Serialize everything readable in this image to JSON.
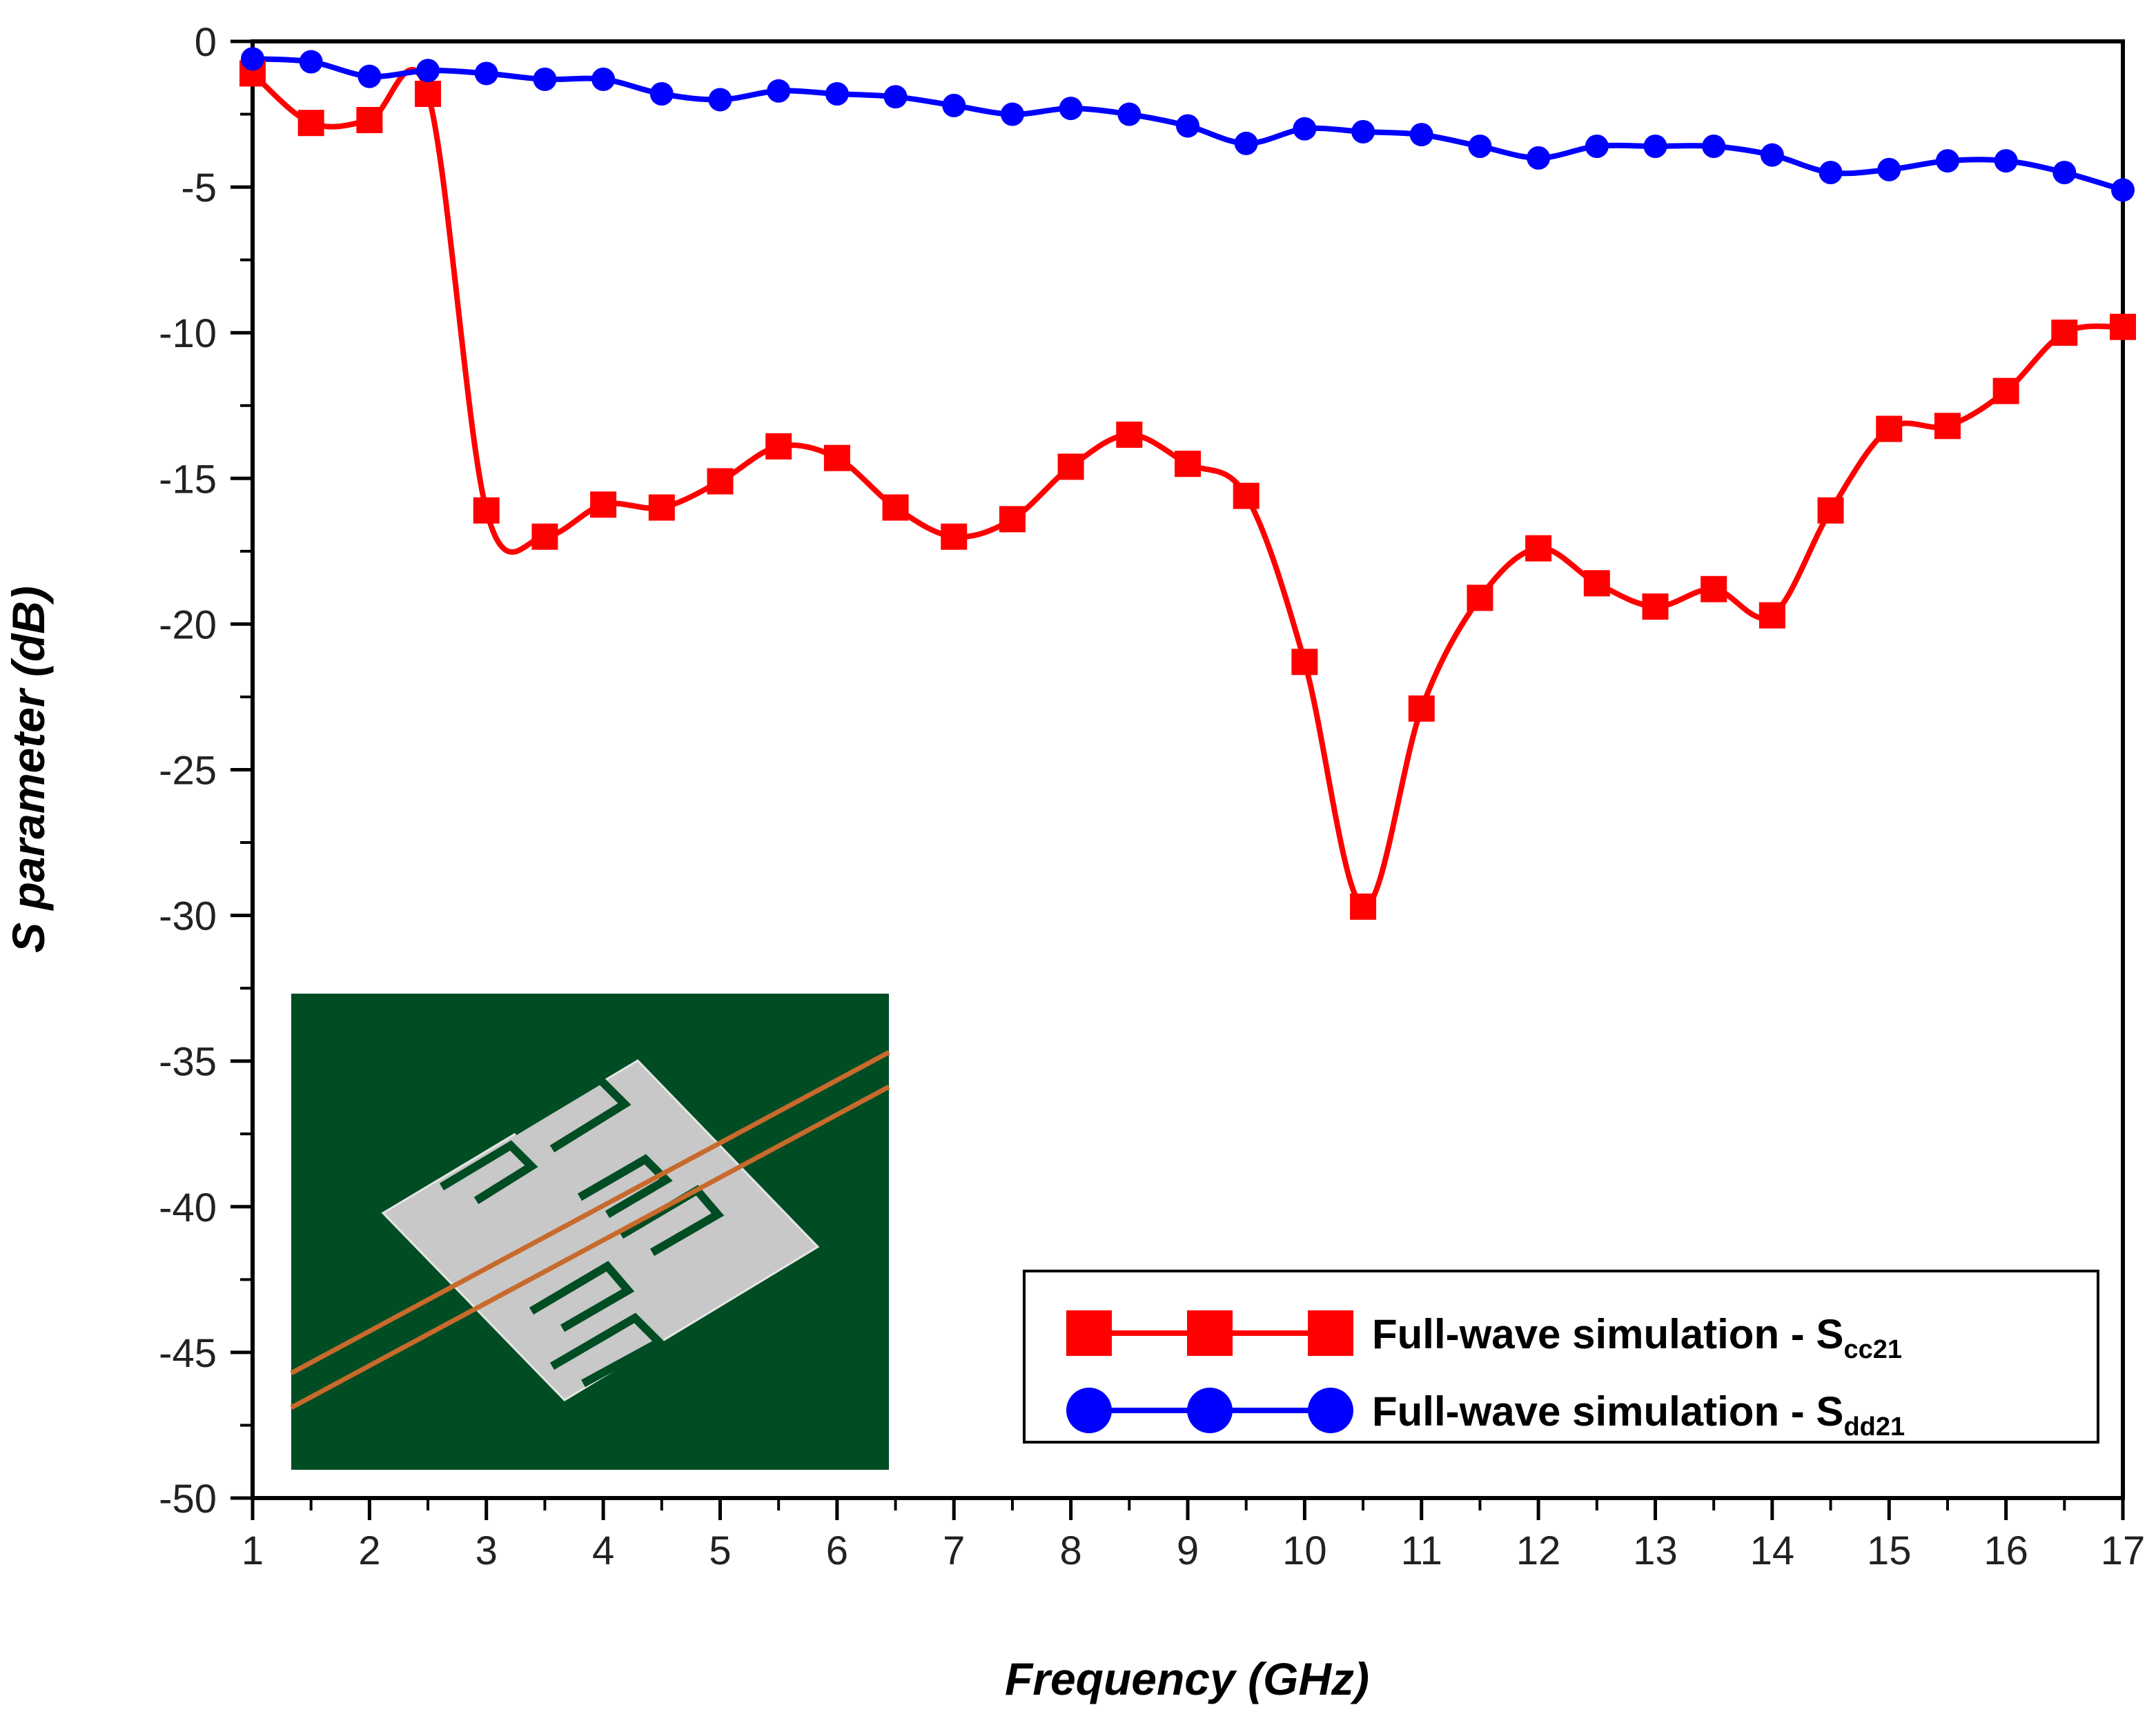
{
  "chart_data": {
    "type": "line",
    "xlabel": "Frequency (GHz)",
    "ylabel": "S parameter (dB)",
    "xlim": [
      1,
      17
    ],
    "ylim": [
      -50,
      0
    ],
    "x_ticks": [
      1,
      2,
      3,
      4,
      5,
      6,
      7,
      8,
      9,
      10,
      11,
      12,
      13,
      14,
      15,
      16,
      17
    ],
    "y_ticks": [
      0,
      -5,
      -10,
      -15,
      -20,
      -25,
      -30,
      -35,
      -40,
      -45,
      -50
    ],
    "grid": false,
    "legend_position": "bottom-right",
    "series": [
      {
        "name": "Full-wave simulation - Scc21",
        "name_main": "Full-wave simulation - S",
        "name_sub": "cc21",
        "color": "#ff0000",
        "marker": "square",
        "x": [
          1,
          1.5,
          2,
          2.5,
          3,
          3.5,
          4,
          4.5,
          5,
          5.5,
          6,
          6.5,
          7,
          7.5,
          8,
          8.5,
          9,
          9.5,
          10,
          10.5,
          11,
          11.5,
          12,
          12.5,
          13,
          13.5,
          14,
          14.5,
          15,
          15.5,
          16,
          16.5,
          17
        ],
        "values": [
          -1.1,
          -2.8,
          -2.7,
          -1.8,
          -16.1,
          -17.0,
          -15.9,
          -16.0,
          -15.1,
          -13.9,
          -14.3,
          -16.0,
          -17.0,
          -16.4,
          -14.6,
          -13.5,
          -14.5,
          -15.6,
          -21.3,
          -29.7,
          -22.9,
          -19.1,
          -17.4,
          -18.6,
          -19.4,
          -18.8,
          -19.7,
          -16.1,
          -13.3,
          -13.2,
          -12.0,
          -10.0,
          -9.8
        ]
      },
      {
        "name": "Full-wave simulation - Sdd21",
        "name_main": "Full-wave simulation - S",
        "name_sub": "dd21",
        "color": "#0000ff",
        "marker": "circle",
        "x": [
          1,
          1.5,
          2,
          2.5,
          3,
          3.5,
          4,
          4.5,
          5,
          5.5,
          6,
          6.5,
          7,
          7.5,
          8,
          8.5,
          9,
          9.5,
          10,
          10.5,
          11,
          11.5,
          12,
          12.5,
          13,
          13.5,
          14,
          14.5,
          15,
          15.5,
          16,
          16.5,
          17
        ],
        "values": [
          -0.6,
          -0.7,
          -1.2,
          -1.0,
          -1.1,
          -1.3,
          -1.3,
          -1.8,
          -2.0,
          -1.7,
          -1.8,
          -1.9,
          -2.2,
          -2.5,
          -2.3,
          -2.5,
          -2.9,
          -3.5,
          -3.0,
          -3.1,
          -3.2,
          -3.6,
          -4.0,
          -3.6,
          -3.6,
          -3.6,
          -3.9,
          -4.5,
          -4.4,
          -4.1,
          -4.1,
          -4.5,
          -5.1
        ]
      }
    ]
  }
}
